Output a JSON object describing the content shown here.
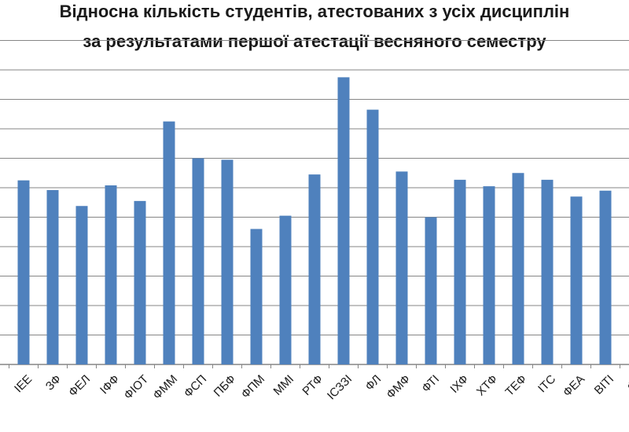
{
  "chart_data": {
    "type": "bar",
    "title": "Відносна кількість  студентів, атестованих з усіх дисциплін",
    "subtitle": "за результатами першої атестації весняного семестру",
    "xlabel": "",
    "ylabel": "",
    "categories": [
      "ІЕЕ",
      "ЗФ",
      "ФЕЛ",
      "ІФФ",
      "ФІОТ",
      "ФММ",
      "ФСП",
      "ПБФ",
      "ФПМ",
      "ММІ",
      "РТФ",
      "ІСЗЗІ",
      "ФЛ",
      "ФМФ",
      "ФТІ",
      "ІХФ",
      "ХТФ",
      "ТЕФ",
      "ІТС",
      "ФЕА",
      "ВІТІ",
      "ФБ"
    ],
    "values": [
      62.5,
      59.2,
      53.8,
      60.8,
      55.5,
      82.5,
      70.0,
      69.5,
      46.0,
      50.5,
      64.5,
      97.5,
      86.5,
      65.5,
      50.0,
      62.7,
      60.5,
      65.0,
      62.7,
      57.0,
      59.0,
      0
    ],
    "ylim": [
      0,
      110
    ],
    "grid": true,
    "legend": "none",
    "bar_color": "#4f81bd",
    "grid_color": "#868686"
  }
}
